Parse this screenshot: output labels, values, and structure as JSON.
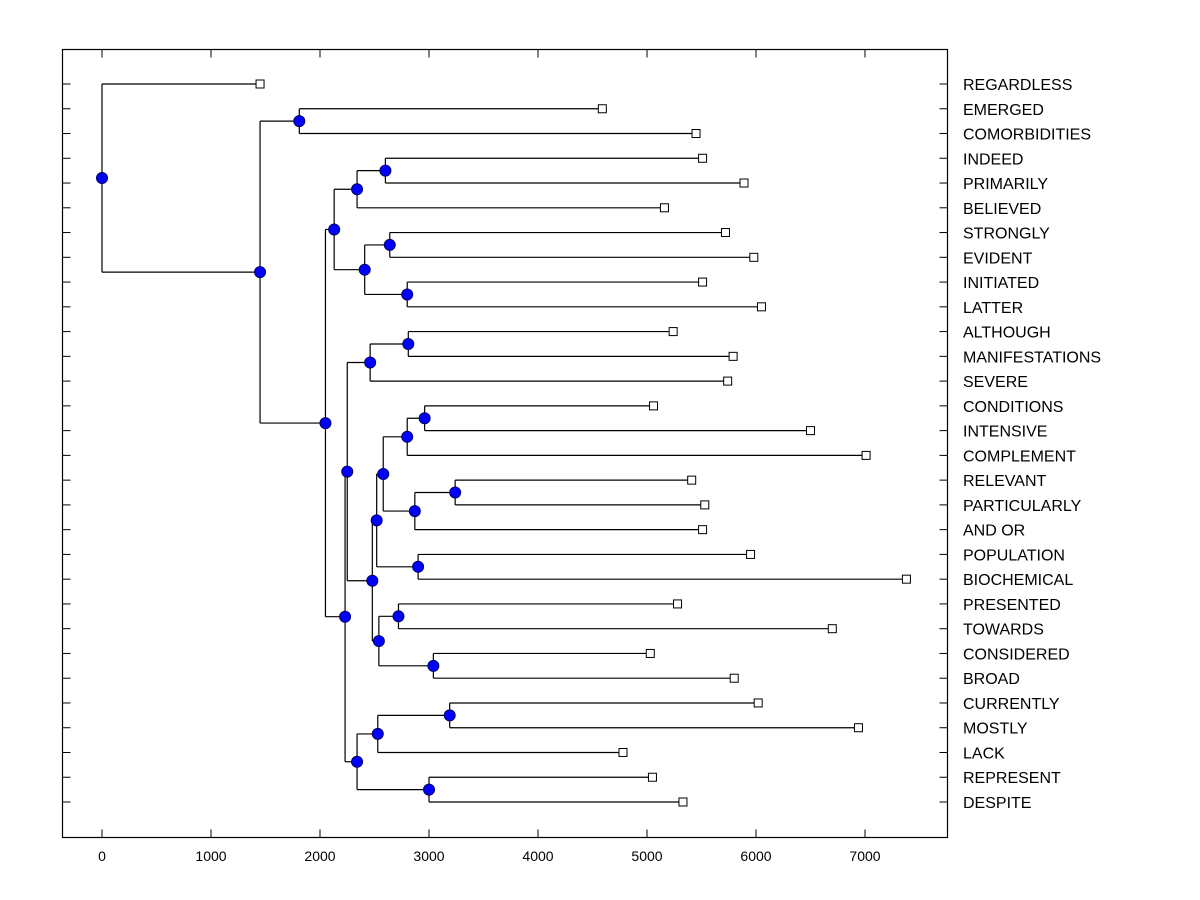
{
  "chart_data": {
    "type": "dendrogram",
    "title": "",
    "xlabel": "",
    "ylabel": "",
    "xlim": [
      -370,
      7750
    ],
    "x_ticks": [
      0,
      1000,
      2000,
      3000,
      4000,
      5000,
      6000,
      7000
    ],
    "x_tick_labels": [
      "0",
      "1000",
      "2000",
      "3000",
      "4000",
      "5000",
      "6000",
      "7000"
    ],
    "grid": false,
    "leaf_label_position": "right",
    "colors": {
      "node_fill": "#0000ff",
      "node_stroke": "#000066",
      "line": "#000000",
      "leaf_fill": "#ffffff"
    },
    "leaves": [
      {
        "id": "REGARDLESS",
        "label": "REGARDLESS",
        "x": 1450
      },
      {
        "id": "EMERGED",
        "label": "EMERGED",
        "x": 4590
      },
      {
        "id": "COMORBIDITIES",
        "label": "COMORBIDITIES",
        "x": 5450
      },
      {
        "id": "INDEED",
        "label": "INDEED",
        "x": 5510
      },
      {
        "id": "PRIMARILY",
        "label": "PRIMARILY",
        "x": 5890
      },
      {
        "id": "BELIEVED",
        "label": "BELIEVED",
        "x": 5160
      },
      {
        "id": "STRONGLY",
        "label": "STRONGLY",
        "x": 5720
      },
      {
        "id": "EVIDENT",
        "label": "EVIDENT",
        "x": 5980
      },
      {
        "id": "INITIATED",
        "label": "INITIATED",
        "x": 5510
      },
      {
        "id": "LATTER",
        "label": "LATTER",
        "x": 6050
      },
      {
        "id": "ALTHOUGH",
        "label": "ALTHOUGH",
        "x": 5240
      },
      {
        "id": "MANIFESTATIONS",
        "label": "MANIFESTATIONS",
        "x": 5790
      },
      {
        "id": "SEVERE",
        "label": "SEVERE",
        "x": 5740
      },
      {
        "id": "CONDITIONS",
        "label": "CONDITIONS",
        "x": 5060
      },
      {
        "id": "INTENSIVE",
        "label": "INTENSIVE",
        "x": 6500
      },
      {
        "id": "COMPLEMENT",
        "label": "COMPLEMENT",
        "x": 7010
      },
      {
        "id": "RELEVANT",
        "label": "RELEVANT",
        "x": 5410
      },
      {
        "id": "PARTICULARLY",
        "label": "PARTICULARLY",
        "x": 5530
      },
      {
        "id": "AND_OR",
        "label": "AND OR",
        "x": 5510
      },
      {
        "id": "POPULATION",
        "label": "POPULATION",
        "x": 5950
      },
      {
        "id": "BIOCHEMICAL",
        "label": "BIOCHEMICAL",
        "x": 7380
      },
      {
        "id": "PRESENTED",
        "label": "PRESENTED",
        "x": 5280
      },
      {
        "id": "TOWARDS",
        "label": "TOWARDS",
        "x": 6700
      },
      {
        "id": "CONSIDERED",
        "label": "CONSIDERED",
        "x": 5030
      },
      {
        "id": "BROAD",
        "label": "BROAD",
        "x": 5800
      },
      {
        "id": "CURRENTLY",
        "label": "CURRENTLY",
        "x": 6020
      },
      {
        "id": "MOSTLY",
        "label": "MOSTLY",
        "x": 6940
      },
      {
        "id": "LACK",
        "label": "LACK",
        "x": 4780
      },
      {
        "id": "REPRESENT",
        "label": "REPRESENT",
        "x": 5050
      },
      {
        "id": "DESPITE",
        "label": "DESPITE",
        "x": 5330
      }
    ],
    "nodes": [
      {
        "id": "n_root",
        "x": 0,
        "children": [
          "REGARDLESS",
          "n_A"
        ]
      },
      {
        "id": "n_A",
        "x": 1450,
        "children": [
          "n_B",
          "n_C"
        ]
      },
      {
        "id": "n_B",
        "x": 1810,
        "children": [
          "EMERGED",
          "COMORBIDITIES"
        ]
      },
      {
        "id": "n_C",
        "x": 2050,
        "children": [
          "n_D",
          "n_E"
        ]
      },
      {
        "id": "n_D",
        "x": 2130,
        "children": [
          "n_F",
          "n_G"
        ]
      },
      {
        "id": "n_F",
        "x": 2340,
        "children": [
          "n_H",
          "BELIEVED"
        ]
      },
      {
        "id": "n_H",
        "x": 2600,
        "children": [
          "INDEED",
          "PRIMARILY"
        ]
      },
      {
        "id": "n_G",
        "x": 2410,
        "children": [
          "n_I",
          "n_J"
        ]
      },
      {
        "id": "n_I",
        "x": 2640,
        "children": [
          "STRONGLY",
          "EVIDENT"
        ]
      },
      {
        "id": "n_J",
        "x": 2800,
        "children": [
          "INITIATED",
          "LATTER"
        ]
      },
      {
        "id": "n_E",
        "x": 2230,
        "children": [
          "n_K",
          "n_L"
        ]
      },
      {
        "id": "n_K",
        "x": 2250,
        "children": [
          "n_M",
          "n_N"
        ]
      },
      {
        "id": "n_M",
        "x": 2460,
        "children": [
          "n_O",
          "SEVERE"
        ]
      },
      {
        "id": "n_O",
        "x": 2810,
        "children": [
          "ALTHOUGH",
          "MANIFESTATIONS"
        ]
      },
      {
        "id": "n_N",
        "x": 2480,
        "children": [
          "n_P",
          "n_Q"
        ]
      },
      {
        "id": "n_P",
        "x": 2520,
        "children": [
          "n_R",
          "n_S"
        ]
      },
      {
        "id": "n_R",
        "x": 2580,
        "children": [
          "n_T",
          "n_U"
        ]
      },
      {
        "id": "n_T",
        "x": 2800,
        "children": [
          "n_V",
          "COMPLEMENT"
        ]
      },
      {
        "id": "n_V",
        "x": 2960,
        "children": [
          "CONDITIONS",
          "INTENSIVE"
        ]
      },
      {
        "id": "n_U",
        "x": 2870,
        "children": [
          "n_W",
          "AND_OR"
        ]
      },
      {
        "id": "n_W",
        "x": 3240,
        "children": [
          "RELEVANT",
          "PARTICULARLY"
        ]
      },
      {
        "id": "n_S",
        "x": 2900,
        "children": [
          "POPULATION",
          "BIOCHEMICAL"
        ]
      },
      {
        "id": "n_Q",
        "x": 2540,
        "children": [
          "n_X",
          "n_Y"
        ]
      },
      {
        "id": "n_X",
        "x": 2720,
        "children": [
          "PRESENTED",
          "TOWARDS"
        ]
      },
      {
        "id": "n_Y",
        "x": 3040,
        "children": [
          "CONSIDERED",
          "BROAD"
        ]
      },
      {
        "id": "n_L",
        "x": 2340,
        "children": [
          "n_Z",
          "n_AA"
        ]
      },
      {
        "id": "n_Z",
        "x": 2530,
        "children": [
          "n_AB",
          "LACK"
        ]
      },
      {
        "id": "n_AB",
        "x": 3190,
        "children": [
          "CURRENTLY",
          "MOSTLY"
        ]
      },
      {
        "id": "n_AA",
        "x": 3000,
        "children": [
          "REPRESENT",
          "DESPITE"
        ]
      }
    ]
  }
}
